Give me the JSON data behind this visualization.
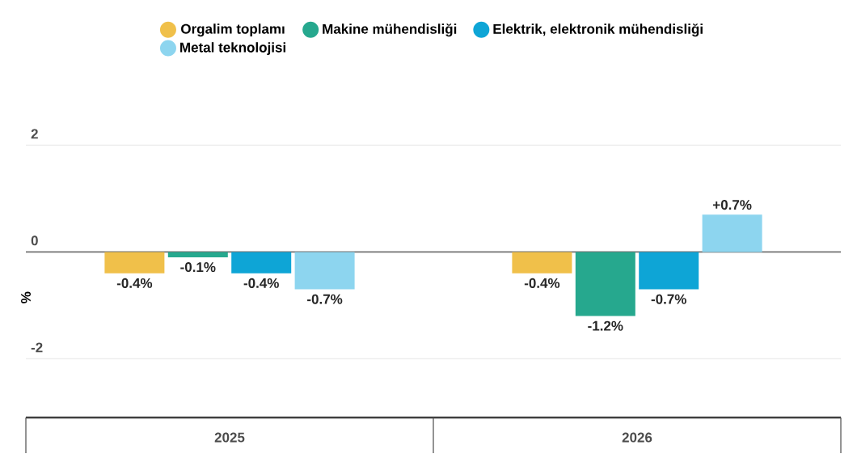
{
  "chart_data": {
    "type": "bar",
    "categories": [
      "2025",
      "2026"
    ],
    "ylabel": "%",
    "ylim": [
      -3.1,
      2
    ],
    "yticks": [
      -2,
      0,
      2
    ],
    "grid": "y",
    "legend": "top",
    "series": [
      {
        "name": "Orgalim toplamı",
        "color": "#f0c04a",
        "values": [
          -0.4,
          -0.4
        ],
        "value_labels": [
          "-0.4%",
          "-0.4%"
        ]
      },
      {
        "name": "Makine mühendisliği",
        "color": "#26a88e",
        "values": [
          -0.1,
          -1.2
        ],
        "value_labels": [
          "-0.1%",
          "-1.2%"
        ]
      },
      {
        "name": "Elektrik, elektronik mühendisliği",
        "color": "#0ea5d6",
        "values": [
          -0.4,
          -0.7
        ],
        "value_labels": [
          "-0.4%",
          "-0.7%"
        ]
      },
      {
        "name": "Metal teknolojisi",
        "color": "#8dd5ef",
        "values": [
          -0.7,
          0.7
        ],
        "value_labels": [
          "-0.7%",
          "+0.7%"
        ]
      }
    ]
  }
}
